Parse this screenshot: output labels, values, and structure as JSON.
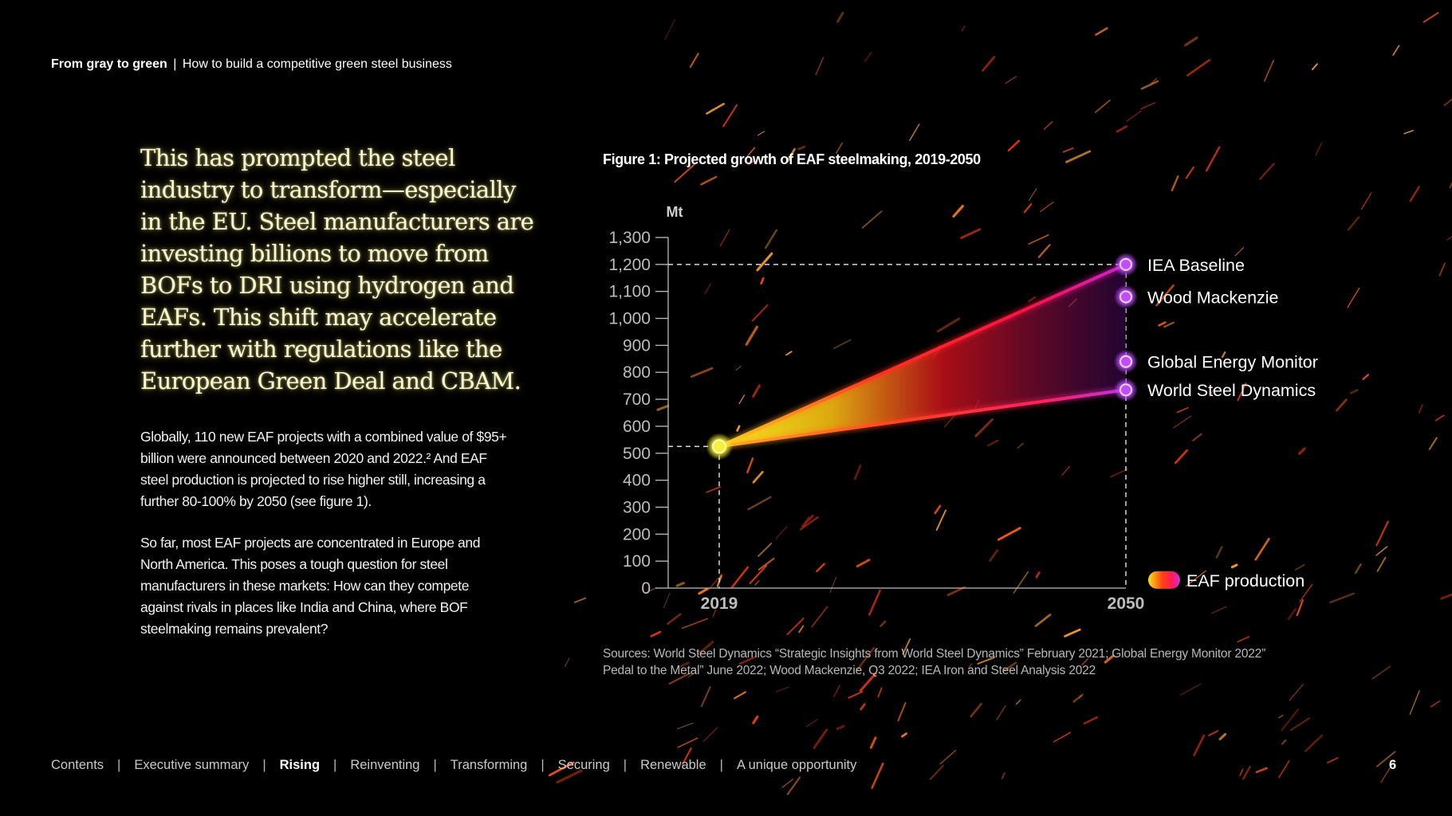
{
  "header": {
    "bold": "From gray to green",
    "separator": "|",
    "subtitle": "How to build a competitive green steel business"
  },
  "lead_text": "This has prompted the steel industry to transform—especially in the EU. Steel manufacturers are investing billions to move from BOFs to DRI using hydrogen and EAFs. This shift may accelerate further with regulations like the European Green Deal and CBAM.",
  "body_paragraphs": [
    "Globally, 110 new EAF projects with a combined value of $95+ billion were announced between 2020 and 2022.² And EAF steel production is projected to rise higher still, increasing a further 80-100% by 2050 (see figure 1).",
    "So far, most EAF projects are concentrated in Europe and North America. This poses a tough question for steel manufacturers in these markets: How can they compete against rivals in places like India and China, where BOF steelmaking remains prevalent?"
  ],
  "figure_title": "Figure 1: Projected growth of EAF steelmaking, 2019-2050",
  "sources": "Sources: World Steel Dynamics “Strategic Insights from World Steel Dynamics” February 2021; Global Energy Monitor 2022” Pedal to the Metal” June 2022; Wood Mackenzie, Q3 2022; IEA Iron and Steel Analysis 2022",
  "chart_data": {
    "type": "line",
    "title": "Figure 1: Projected growth of EAF steelmaking, 2019-2050",
    "ylabel": "Mt",
    "xlabel": "",
    "ylim": [
      0,
      1300
    ],
    "yticks": [
      0,
      100,
      200,
      300,
      400,
      500,
      600,
      700,
      800,
      900,
      1000,
      1100,
      1200,
      1300
    ],
    "ytick_labels": [
      "0",
      "100",
      "200",
      "300",
      "400",
      "500",
      "600",
      "700",
      "800",
      "900",
      "1,000",
      "1,100",
      "1,200",
      "1,300"
    ],
    "x": [
      2019,
      2050
    ],
    "x_labels": [
      "2019",
      "2050"
    ],
    "start_value": 525,
    "series": [
      {
        "name": "IEA Baseline",
        "values": [
          525,
          1200
        ]
      },
      {
        "name": "Wood Mackenzie",
        "values": [
          525,
          1080
        ]
      },
      {
        "name": "Global Energy Monitor",
        "values": [
          525,
          840
        ]
      },
      {
        "name": "World Steel Dynamics",
        "values": [
          525,
          735
        ]
      }
    ],
    "legend": {
      "label": "EAF production",
      "placement": "bottom-right"
    },
    "colors": {
      "start_point": "#f7f03a",
      "end_point": "#c24cff",
      "line_upper": "#ff2a2a",
      "line_lower": "#ff3c2a",
      "fill_start": "#f2e21a",
      "fill_mid": "#d01010",
      "fill_end": "#5a0a6a",
      "axis": "#bdbdbd"
    },
    "grid": false
  },
  "footer": {
    "nav": [
      {
        "label": "Contents",
        "active": false
      },
      {
        "label": "Executive summary",
        "active": false
      },
      {
        "label": "Rising",
        "active": true
      },
      {
        "label": "Reinventing",
        "active": false
      },
      {
        "label": "Transforming",
        "active": false
      },
      {
        "label": "Securing",
        "active": false
      },
      {
        "label": "Renewable",
        "active": false
      },
      {
        "label": "A unique opportunity",
        "active": false
      }
    ],
    "divider": "|",
    "page_number": "6"
  }
}
